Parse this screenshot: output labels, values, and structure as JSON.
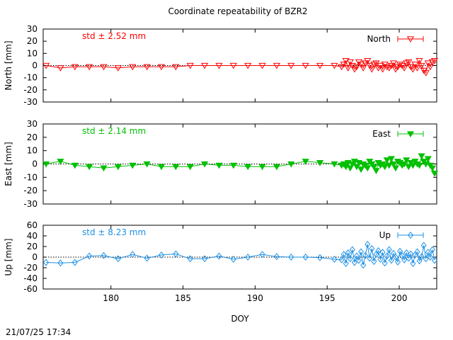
{
  "title": "Coordinate repeatability of BZR2",
  "timestamp": "21/07/25 17:34",
  "colors": {
    "north": "#ff0000",
    "east": "#00c000",
    "up": "#1e90e6",
    "frame": "#000000",
    "zero_line": "#000000"
  },
  "chart_data": [
    {
      "type": "line",
      "panel": "north",
      "ylabel": "North [mm]",
      "ylim": [
        -30,
        30
      ],
      "yticks": [
        -30,
        -20,
        -10,
        0,
        10,
        20,
        30
      ],
      "xlim": [
        175.3,
        202.6
      ],
      "xticks": [
        180,
        185,
        190,
        195,
        200
      ],
      "xticks_labeled": false,
      "marker": "triangle-down-open",
      "std_label": "std ± 2.52 mm",
      "series": [
        {
          "name": "North",
          "x": [
            175.5,
            176.5,
            177.5,
            178.5,
            179.5,
            180.5,
            181.5,
            182.5,
            183.5,
            184.5,
            185.5,
            186.5,
            187.5,
            188.5,
            189.5,
            190.5,
            191.5,
            192.5,
            193.5,
            194.5,
            195.5,
            196.0,
            196.15,
            196.3,
            196.45,
            196.6,
            196.75,
            196.9,
            197.05,
            197.2,
            197.35,
            197.5,
            197.65,
            197.8,
            197.95,
            198.1,
            198.25,
            198.4,
            198.55,
            198.7,
            198.85,
            199.0,
            199.15,
            199.3,
            199.45,
            199.6,
            199.75,
            199.9,
            200.05,
            200.2,
            200.35,
            200.5,
            200.65,
            200.8,
            200.95,
            201.1,
            201.25,
            201.4,
            201.55,
            201.7,
            201.85,
            202.0,
            202.15,
            202.3,
            202.45
          ],
          "y": [
            0,
            -2,
            -1,
            -1,
            -1,
            -2,
            -1,
            -1,
            -1,
            -1,
            0,
            0,
            0,
            0,
            0,
            0,
            0,
            0,
            0,
            0,
            0,
            -1,
            1,
            4,
            -2,
            3,
            0,
            -3,
            -1,
            3,
            1,
            -2,
            2,
            4,
            0,
            -3,
            1,
            2,
            -2,
            0,
            -3,
            1,
            -1,
            -2,
            0,
            2,
            -3,
            -1,
            1,
            0,
            -2,
            2,
            3,
            -1,
            -3,
            1,
            -2,
            4,
            0,
            -4,
            -6,
            2,
            -1,
            3,
            4
          ]
        }
      ]
    },
    {
      "type": "line",
      "panel": "east",
      "ylabel": "East [mm]",
      "ylim": [
        -30,
        30
      ],
      "yticks": [
        -30,
        -20,
        -10,
        0,
        10,
        20,
        30
      ],
      "xlim": [
        175.3,
        202.6
      ],
      "xticks": [
        180,
        185,
        190,
        195,
        200
      ],
      "xticks_labeled": false,
      "marker": "triangle-down-filled",
      "std_label": "std ± 2.14 mm",
      "series": [
        {
          "name": "East",
          "x": [
            175.5,
            176.5,
            177.5,
            178.5,
            179.5,
            180.5,
            181.5,
            182.5,
            183.5,
            184.5,
            185.5,
            186.5,
            187.5,
            188.5,
            189.5,
            190.5,
            191.5,
            192.5,
            193.5,
            194.5,
            195.5,
            196.0,
            196.15,
            196.3,
            196.45,
            196.6,
            196.75,
            196.9,
            197.05,
            197.2,
            197.35,
            197.5,
            197.65,
            197.8,
            197.95,
            198.1,
            198.25,
            198.4,
            198.55,
            198.7,
            198.85,
            199.0,
            199.15,
            199.3,
            199.45,
            199.6,
            199.75,
            199.9,
            200.05,
            200.2,
            200.35,
            200.5,
            200.65,
            200.8,
            200.95,
            201.1,
            201.25,
            201.4,
            201.55,
            201.7,
            201.85,
            202.0,
            202.15,
            202.3,
            202.45
          ],
          "y": [
            0,
            2,
            -1,
            -2,
            -3,
            -2,
            -1,
            0,
            -2,
            -2,
            -2,
            0,
            -1,
            -1,
            -2,
            -2,
            -2,
            0,
            2,
            1,
            0,
            -1,
            0,
            -2,
            1,
            -3,
            0,
            2,
            -2,
            1,
            -4,
            0,
            -1,
            -3,
            2,
            0,
            -2,
            -5,
            1,
            -1,
            0,
            -2,
            3,
            -1,
            4,
            0,
            -3,
            2,
            1,
            -1,
            0,
            3,
            -2,
            1,
            -1,
            2,
            0,
            -1,
            6,
            2,
            0,
            4,
            -1,
            -3,
            -7
          ]
        }
      ]
    },
    {
      "type": "line",
      "panel": "up",
      "ylabel": "Up [mm]",
      "ylim": [
        -60,
        60
      ],
      "yticks": [
        -60,
        -40,
        -20,
        0,
        20,
        40,
        60
      ],
      "xlim": [
        175.3,
        202.6
      ],
      "xticks": [
        180,
        185,
        190,
        195,
        200
      ],
      "xticks_labeled": true,
      "xlabel": "DOY",
      "marker": "diamond-open",
      "std_label": "std ± 8.23 mm",
      "series": [
        {
          "name": "Up",
          "x": [
            175.5,
            176.5,
            177.5,
            178.5,
            179.5,
            180.5,
            181.5,
            182.5,
            183.5,
            184.5,
            185.5,
            186.5,
            187.5,
            188.5,
            189.5,
            190.5,
            191.5,
            192.5,
            193.5,
            194.5,
            195.5,
            196.0,
            196.15,
            196.3,
            196.45,
            196.6,
            196.75,
            196.9,
            197.05,
            197.2,
            197.35,
            197.5,
            197.65,
            197.8,
            197.95,
            198.1,
            198.25,
            198.4,
            198.55,
            198.7,
            198.85,
            199.0,
            199.15,
            199.3,
            199.45,
            199.6,
            199.75,
            199.9,
            200.05,
            200.2,
            200.35,
            200.5,
            200.65,
            200.8,
            200.95,
            201.1,
            201.25,
            201.4,
            201.55,
            201.7,
            201.85,
            202.0,
            202.15,
            202.3,
            202.45
          ],
          "y": [
            -10,
            -11,
            -10,
            2,
            3,
            -3,
            5,
            -2,
            4,
            6,
            -3,
            -3,
            2,
            -4,
            0,
            5,
            1,
            0,
            0,
            -1,
            -4,
            -5,
            5,
            -12,
            8,
            -3,
            14,
            -10,
            2,
            -6,
            10,
            -15,
            3,
            24,
            -2,
            16,
            -8,
            5,
            12,
            -4,
            9,
            -11,
            2,
            14,
            -6,
            7,
            0,
            -9,
            11,
            3,
            -5,
            8,
            -2,
            6,
            -12,
            4,
            10,
            -7,
            1,
            22,
            -3,
            9,
            0,
            14,
            -6
          ]
        }
      ]
    }
  ]
}
